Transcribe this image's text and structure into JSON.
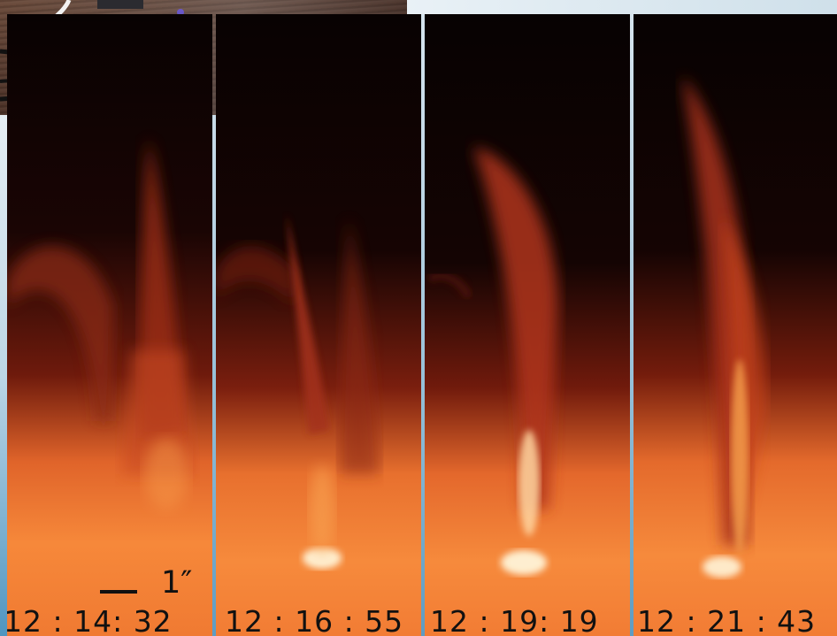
{
  "frames": [
    {
      "time": "12 : 14: 32"
    },
    {
      "time": "12 : 16 : 55"
    },
    {
      "time": "12 : 19: 19"
    },
    {
      "time": "12 : 21 : 43"
    }
  ],
  "scale_bar": {
    "label": "1″"
  },
  "colors": {
    "sky": "#000000",
    "jet": "#c23a1a",
    "surface": "#f5822e",
    "hot": "#fff2d0"
  }
}
